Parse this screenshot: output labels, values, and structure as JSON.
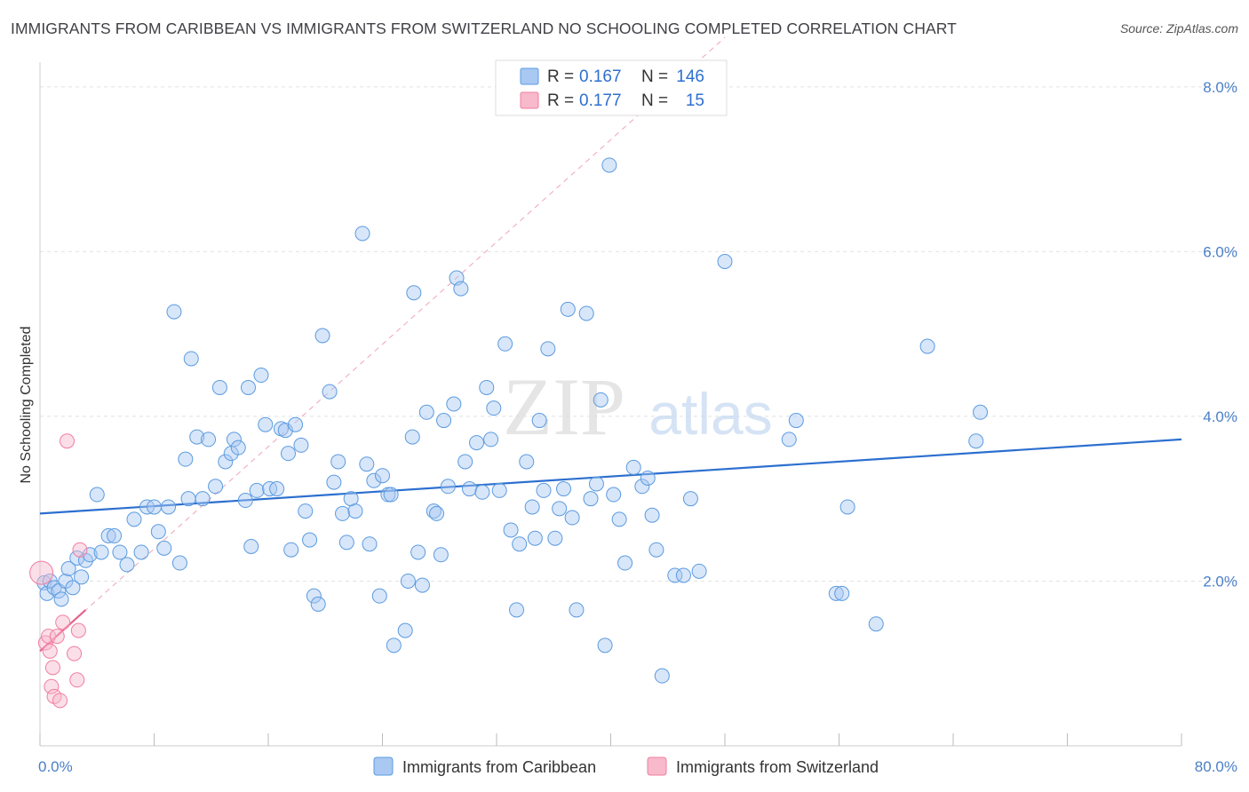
{
  "title": "IMMIGRANTS FROM CARIBBEAN VS IMMIGRANTS FROM SWITZERLAND NO SCHOOLING COMPLETED CORRELATION CHART",
  "source": "Source: ZipAtlas.com",
  "watermark": {
    "zip": "ZIP",
    "atlas": "atlas"
  },
  "legend_top": {
    "rows": [
      {
        "r_label": "R = ",
        "r_value": "0.167",
        "n_label": "N = ",
        "n_value": "146",
        "color": "#a9c8f2"
      },
      {
        "r_label": "R = ",
        "r_value": "0.177",
        "n_label": "N = ",
        "n_value": "15",
        "color": "#f7b9cb"
      }
    ]
  },
  "legend_bottom": [
    {
      "label": "Immigrants from Caribbean",
      "color": "#a9c8f2"
    },
    {
      "label": "Immigrants from Switzerland",
      "color": "#f7b9cb"
    }
  ],
  "chart_data": {
    "type": "scatter",
    "xlabel": "",
    "ylabel": "No Schooling Completed",
    "xlim": [
      0,
      80
    ],
    "ylim": [
      0,
      8.3
    ],
    "x_tick_labels": [
      "0.0%",
      "80.0%"
    ],
    "y_ticks": [
      2,
      4,
      6,
      8
    ],
    "y_tick_labels": [
      "2.0%",
      "4.0%",
      "6.0%",
      "8.0%"
    ],
    "grid": true,
    "legend_position": "top-center",
    "colors": {
      "caribbean": "#5b9be0",
      "caribbean_fill": "#a9c8f2",
      "caribbean_line": "#2c6fcf",
      "switzerland": "#f07ea1",
      "switzerland_fill": "#f7b9cb",
      "switzerland_line": "#e8628c"
    },
    "series": [
      {
        "name": "Immigrants from Caribbean",
        "trend": {
          "x": [
            0,
            80
          ],
          "y": [
            2.82,
            3.72
          ]
        },
        "points": [
          [
            0.3,
            1.98
          ],
          [
            0.5,
            1.85
          ],
          [
            0.7,
            2.0
          ],
          [
            1.0,
            1.92
          ],
          [
            1.3,
            1.88
          ],
          [
            1.5,
            1.78
          ],
          [
            1.8,
            2.0
          ],
          [
            2.0,
            2.15
          ],
          [
            2.3,
            1.92
          ],
          [
            2.6,
            2.28
          ],
          [
            2.9,
            2.05
          ],
          [
            3.2,
            2.25
          ],
          [
            3.5,
            2.32
          ],
          [
            4.0,
            3.05
          ],
          [
            4.3,
            2.35
          ],
          [
            4.8,
            2.55
          ],
          [
            5.2,
            2.55
          ],
          [
            5.6,
            2.35
          ],
          [
            6.1,
            2.2
          ],
          [
            6.6,
            2.75
          ],
          [
            7.1,
            2.35
          ],
          [
            7.5,
            2.9
          ],
          [
            8.0,
            2.9
          ],
          [
            8.3,
            2.6
          ],
          [
            8.7,
            2.4
          ],
          [
            9.0,
            2.9
          ],
          [
            9.4,
            5.27
          ],
          [
            9.8,
            2.22
          ],
          [
            10.2,
            3.48
          ],
          [
            10.4,
            3.0
          ],
          [
            10.6,
            4.7
          ],
          [
            11.0,
            3.75
          ],
          [
            11.4,
            3.0
          ],
          [
            11.8,
            3.72
          ],
          [
            12.3,
            3.15
          ],
          [
            12.6,
            4.35
          ],
          [
            13.0,
            3.45
          ],
          [
            13.4,
            3.55
          ],
          [
            13.6,
            3.72
          ],
          [
            13.9,
            3.62
          ],
          [
            14.4,
            2.98
          ],
          [
            14.6,
            4.35
          ],
          [
            14.8,
            2.42
          ],
          [
            15.2,
            3.1
          ],
          [
            15.5,
            4.5
          ],
          [
            15.8,
            3.9
          ],
          [
            16.1,
            3.12
          ],
          [
            16.6,
            3.12
          ],
          [
            16.9,
            3.85
          ],
          [
            17.2,
            3.83
          ],
          [
            17.4,
            3.55
          ],
          [
            17.6,
            2.38
          ],
          [
            17.9,
            3.9
          ],
          [
            18.3,
            3.65
          ],
          [
            18.6,
            2.85
          ],
          [
            18.9,
            2.5
          ],
          [
            19.2,
            1.82
          ],
          [
            19.5,
            1.72
          ],
          [
            19.8,
            4.98
          ],
          [
            20.3,
            4.3
          ],
          [
            20.6,
            3.2
          ],
          [
            20.9,
            3.45
          ],
          [
            21.2,
            2.82
          ],
          [
            21.5,
            2.47
          ],
          [
            21.8,
            3.0
          ],
          [
            22.1,
            2.85
          ],
          [
            22.6,
            6.22
          ],
          [
            22.9,
            3.42
          ],
          [
            23.1,
            2.45
          ],
          [
            23.4,
            3.22
          ],
          [
            23.8,
            1.82
          ],
          [
            24.0,
            3.28
          ],
          [
            24.4,
            3.05
          ],
          [
            24.6,
            3.05
          ],
          [
            24.8,
            1.22
          ],
          [
            25.6,
            1.4
          ],
          [
            25.8,
            2.0
          ],
          [
            26.1,
            3.75
          ],
          [
            26.2,
            5.5
          ],
          [
            26.5,
            2.35
          ],
          [
            26.8,
            1.95
          ],
          [
            27.1,
            4.05
          ],
          [
            27.6,
            2.85
          ],
          [
            27.8,
            2.82
          ],
          [
            28.1,
            2.32
          ],
          [
            28.3,
            3.95
          ],
          [
            28.6,
            3.15
          ],
          [
            29.0,
            4.15
          ],
          [
            29.2,
            5.68
          ],
          [
            29.5,
            5.55
          ],
          [
            29.8,
            3.45
          ],
          [
            30.1,
            3.12
          ],
          [
            30.6,
            3.68
          ],
          [
            31.0,
            3.08
          ],
          [
            31.3,
            4.35
          ],
          [
            31.6,
            3.72
          ],
          [
            31.8,
            4.1
          ],
          [
            32.2,
            3.1
          ],
          [
            32.6,
            4.88
          ],
          [
            33.0,
            2.62
          ],
          [
            33.4,
            1.65
          ],
          [
            33.6,
            2.45
          ],
          [
            34.1,
            3.45
          ],
          [
            34.5,
            2.9
          ],
          [
            34.7,
            2.52
          ],
          [
            35.0,
            3.95
          ],
          [
            35.3,
            3.1
          ],
          [
            35.6,
            4.82
          ],
          [
            36.1,
            2.52
          ],
          [
            36.4,
            2.88
          ],
          [
            36.7,
            3.12
          ],
          [
            37.0,
            5.3
          ],
          [
            37.3,
            2.77
          ],
          [
            37.6,
            1.65
          ],
          [
            38.3,
            5.25
          ],
          [
            38.6,
            3.0
          ],
          [
            39.0,
            3.18
          ],
          [
            39.3,
            4.2
          ],
          [
            39.6,
            1.22
          ],
          [
            39.9,
            7.05
          ],
          [
            40.2,
            3.05
          ],
          [
            40.6,
            2.75
          ],
          [
            41.0,
            2.22
          ],
          [
            41.6,
            3.38
          ],
          [
            42.2,
            3.15
          ],
          [
            42.6,
            3.25
          ],
          [
            42.9,
            2.8
          ],
          [
            43.2,
            2.38
          ],
          [
            43.6,
            0.85
          ],
          [
            44.5,
            2.07
          ],
          [
            45.1,
            2.07
          ],
          [
            45.6,
            3.0
          ],
          [
            46.2,
            2.12
          ],
          [
            48.0,
            5.88
          ],
          [
            52.5,
            3.72
          ],
          [
            53.0,
            3.95
          ],
          [
            55.8,
            1.85
          ],
          [
            56.2,
            1.85
          ],
          [
            56.6,
            2.9
          ],
          [
            58.6,
            1.48
          ],
          [
            62.2,
            4.85
          ],
          [
            65.6,
            3.7
          ],
          [
            65.9,
            4.05
          ]
        ]
      },
      {
        "name": "Immigrants from Switzerland",
        "trend": {
          "x": [
            0,
            3.2
          ],
          "y": [
            1.15,
            1.65
          ]
        },
        "points": [
          [
            0.1,
            2.1
          ],
          [
            0.4,
            1.25
          ],
          [
            0.6,
            1.33
          ],
          [
            0.7,
            1.15
          ],
          [
            0.8,
            0.72
          ],
          [
            0.9,
            0.95
          ],
          [
            1.0,
            0.6
          ],
          [
            1.2,
            1.33
          ],
          [
            1.4,
            0.55
          ],
          [
            1.6,
            1.5
          ],
          [
            1.9,
            3.7
          ],
          [
            2.4,
            1.12
          ],
          [
            2.6,
            0.8
          ],
          [
            2.7,
            1.4
          ],
          [
            2.8,
            2.38
          ]
        ]
      }
    ]
  }
}
